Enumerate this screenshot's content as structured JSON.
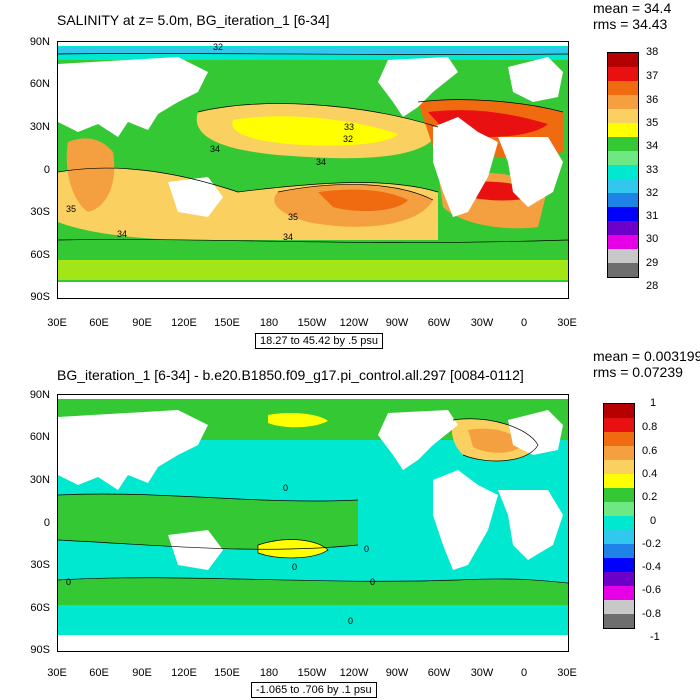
{
  "panels": [
    {
      "title": "SALINITY at z=   5.0m, BG_iteration_1 [6-34]",
      "mean": "mean = 34.4",
      "rms": "rms = 34.43",
      "range_label": "18.27 to 45.42 by .5 psu",
      "lat_labels": [
        "90N",
        "60N",
        "30N",
        "0",
        "30S",
        "60S",
        "90S"
      ],
      "lon_labels": [
        "30E",
        "60E",
        "90E",
        "120E",
        "150E",
        "180",
        "150W",
        "120W",
        "90W",
        "60W",
        "30W",
        "0",
        "30E"
      ],
      "colorbar": {
        "labels": [
          "38",
          "37",
          "36",
          "35",
          "34",
          "33",
          "32",
          "31",
          "30",
          "29",
          "28"
        ],
        "colors": [
          "#b40000",
          "#e81010",
          "#f06a10",
          "#f5a040",
          "#fad060",
          "#ffff00",
          "#34c834",
          "#6ee882",
          "#00e8d0",
          "#32c8ee",
          "#1e82e6",
          "#0000ff",
          "#6c00c8",
          "#e600e6",
          "#c8c8c8",
          "#6e6e6e"
        ]
      },
      "contour_labels": [
        "32",
        "33",
        "32",
        "34",
        "34",
        "35",
        "34",
        "35",
        "34"
      ]
    },
    {
      "title": "BG_iteration_1 [6-34] - b.e20.B1850.f09_g17.pi_control.all.297 [0084-0112]",
      "mean": "mean = 0.003199",
      "rms": "rms = 0.07239",
      "range_label": "-1.065 to .706 by .1 psu",
      "lat_labels": [
        "90N",
        "60N",
        "30N",
        "0",
        "30S",
        "60S",
        "90S"
      ],
      "lon_labels": [
        "30E",
        "60E",
        "90E",
        "120E",
        "150E",
        "180",
        "150W",
        "120W",
        "90W",
        "60W",
        "30W",
        "0",
        "30E"
      ],
      "colorbar": {
        "labels": [
          "1",
          "0.8",
          "0.6",
          "0.4",
          "0.2",
          "0",
          "-0.2",
          "-0.4",
          "-0.6",
          "-0.8",
          "-1"
        ],
        "colors": [
          "#b40000",
          "#e81010",
          "#f06a10",
          "#f5a040",
          "#fad060",
          "#ffff00",
          "#34c834",
          "#6ee882",
          "#00e8d0",
          "#32c8ee",
          "#1e82e6",
          "#0000ff",
          "#6c00c8",
          "#e600e6",
          "#c8c8c8",
          "#6e6e6e"
        ]
      },
      "contour_labels": [
        "0",
        "0",
        "0",
        "0",
        "0",
        "0"
      ]
    }
  ],
  "colors": {
    "land": "#ffffff",
    "ocean_top_base": "#fad060",
    "ocean_bottom_base": "#6ee882"
  }
}
